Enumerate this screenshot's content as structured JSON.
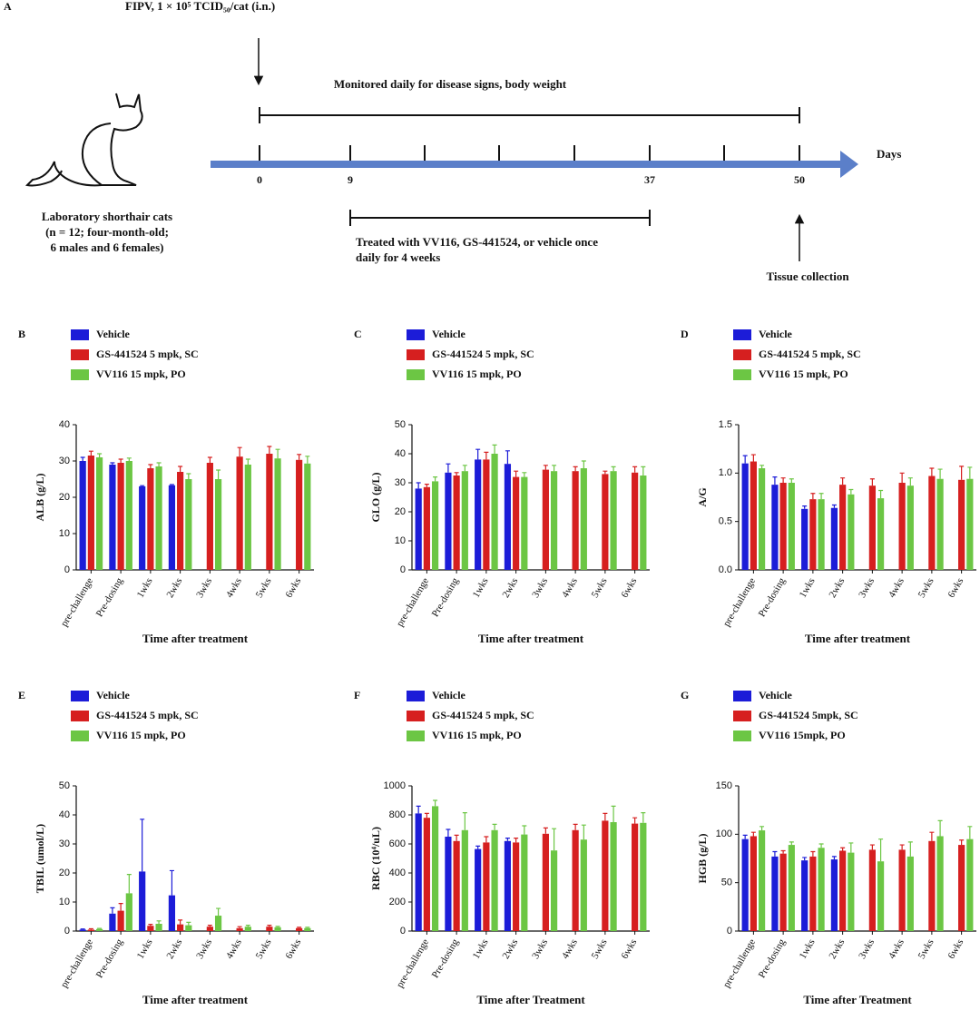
{
  "panel_a": {
    "label": "A",
    "challenge": "FIPV, 1 × 10⁵ TCID₅₀/cat (i.n.)",
    "monitor": "Monitored daily for disease signs, body weight",
    "days_label": "Days",
    "day_ticks": [
      "0",
      "9",
      "37",
      "50"
    ],
    "cat_lines": [
      "Laboratory shorthair cats",
      "(n = 12; four-month-old;",
      "6 males and 6 females)"
    ],
    "treatment_lines": [
      "Treated with VV116, GS-441524, or vehicle once",
      "daily for 4 weeks"
    ],
    "tissue": "Tissue collection"
  },
  "chart_data": [
    {
      "type": "bar",
      "panel": "B",
      "y_label": "ALB (g/L)",
      "x_label": "Time after treatment",
      "categories": [
        "pre-challenge",
        "Pre-dosing",
        "1wks",
        "2wks",
        "3wks",
        "4wks",
        "5wks",
        "6wks"
      ],
      "ylim": [
        0,
        40
      ],
      "yticks": [
        0,
        10,
        20,
        30,
        40
      ],
      "series": [
        {
          "name": "Vehicle",
          "color": "#1c1cd8",
          "values": [
            30,
            29,
            23,
            23.3,
            null,
            null,
            null,
            null
          ],
          "errors": [
            1,
            0.5,
            0.2,
            0.2,
            null,
            null,
            null,
            null
          ]
        },
        {
          "name": "GS-441524 5 mpk, SC",
          "color": "#d61f1f",
          "values": [
            31.5,
            29.5,
            28,
            27,
            29.5,
            31.2,
            32,
            30.3
          ],
          "errors": [
            1.2,
            1,
            1,
            1.5,
            1.5,
            2.5,
            2,
            1.5
          ]
        },
        {
          "name": "VV116 15 mpk, PO",
          "color": "#6cc644",
          "values": [
            31,
            30,
            28.5,
            25,
            25,
            29,
            30.7,
            29.3
          ],
          "errors": [
            1,
            0.8,
            1,
            1.5,
            2.5,
            1.5,
            2.5,
            2
          ]
        }
      ]
    },
    {
      "type": "bar",
      "panel": "C",
      "y_label": "GLO (g/L)",
      "x_label": "Time after treatment",
      "categories": [
        "pre-challenge",
        "Pre-dosing",
        "1wks",
        "2wks",
        "3wks",
        "4wks",
        "5wks",
        "6wks"
      ],
      "ylim": [
        0,
        50
      ],
      "yticks": [
        0,
        10,
        20,
        30,
        40,
        50
      ],
      "series": [
        {
          "name": "Vehicle",
          "color": "#1c1cd8",
          "values": [
            28,
            33.5,
            38,
            36.5,
            null,
            null,
            null,
            null
          ],
          "errors": [
            2,
            3,
            3.5,
            4.5,
            null,
            null,
            null,
            null
          ]
        },
        {
          "name": "GS-441524 5 mpk, SC",
          "color": "#d61f1f",
          "values": [
            28.5,
            32.5,
            38,
            32,
            34.5,
            34,
            33,
            33.5
          ],
          "errors": [
            1,
            1,
            2.5,
            2,
            1.5,
            1.5,
            1,
            2
          ]
        },
        {
          "name": "VV116 15 mpk, PO",
          "color": "#6cc644",
          "values": [
            30.5,
            34,
            40,
            32,
            34,
            35,
            34,
            32.5
          ],
          "errors": [
            1.5,
            2,
            3,
            1.5,
            2,
            2.5,
            1.5,
            3
          ]
        }
      ]
    },
    {
      "type": "bar",
      "panel": "D",
      "y_label": "A/G",
      "x_label": "Time after treatment",
      "categories": [
        "pre-challenge",
        "Pre-dosing",
        "1wks",
        "2wks",
        "3wks",
        "4wks",
        "5wks",
        "6wks"
      ],
      "ylim": [
        0,
        1.5
      ],
      "yticks": [
        {
          "value": 0,
          "label": "0.0"
        },
        0.5,
        {
          "value": 1,
          "label": "1.0"
        },
        1.5
      ],
      "series": [
        {
          "name": "Vehicle",
          "color": "#1c1cd8",
          "values": [
            1.1,
            0.88,
            0.63,
            0.64,
            null,
            null,
            null,
            null
          ],
          "errors": [
            0.08,
            0.08,
            0.03,
            0.03,
            null,
            null,
            null,
            null
          ]
        },
        {
          "name": "GS-441524 5 mpk, SC",
          "color": "#d61f1f",
          "values": [
            1.12,
            0.9,
            0.73,
            0.88,
            0.87,
            0.9,
            0.97,
            0.93
          ],
          "errors": [
            0.07,
            0.05,
            0.06,
            0.07,
            0.07,
            0.1,
            0.08,
            0.14
          ]
        },
        {
          "name": "VV116 15 mpk, PO",
          "color": "#6cc644",
          "values": [
            1.05,
            0.9,
            0.73,
            0.78,
            0.74,
            0.87,
            0.94,
            0.94
          ],
          "errors": [
            0.03,
            0.04,
            0.06,
            0.05,
            0.08,
            0.08,
            0.1,
            0.12
          ]
        }
      ]
    },
    {
      "type": "bar",
      "panel": "E",
      "y_label": "TBIL (umol/L)",
      "x_label": "Time after treatment",
      "categories": [
        "pre-challenge",
        "Pre-dosing",
        "1wks",
        "2wks",
        "3wks",
        "4wks",
        "5wks",
        "6wks"
      ],
      "ylim": [
        0,
        50
      ],
      "yticks": [
        0,
        10,
        20,
        30,
        40,
        50
      ],
      "series": [
        {
          "name": "Vehicle",
          "color": "#1c1cd8",
          "values": [
            0.5,
            6,
            20.5,
            12.3,
            null,
            null,
            null,
            null
          ],
          "errors": [
            0.2,
            2,
            18,
            8.5,
            null,
            null,
            null,
            null
          ]
        },
        {
          "name": "GS-441524 5 mpk, SC",
          "color": "#d61f1f",
          "values": [
            0.5,
            7,
            1.8,
            2.3,
            1.5,
            1,
            1.5,
            1
          ],
          "errors": [
            0.3,
            2.5,
            0.5,
            1.5,
            0.5,
            0.5,
            0.5,
            0.3
          ]
        },
        {
          "name": "VV116 15 mpk, PO",
          "color": "#6cc644",
          "values": [
            0.7,
            13,
            2.5,
            2,
            5.3,
            1.5,
            1.3,
            1
          ],
          "errors": [
            0.2,
            6.5,
            1,
            1,
            2.5,
            0.5,
            0.3,
            0.3
          ]
        }
      ]
    },
    {
      "type": "bar",
      "panel": "F",
      "y_label": "RBC (10⁴/uL)",
      "x_label": "Time after Treatment",
      "categories": [
        "pre-challenge",
        "Pre-dosing",
        "1wks",
        "2wks",
        "3wks",
        "4wks",
        "5wks",
        "6wks"
      ],
      "ylim": [
        0,
        1000
      ],
      "yticks": [
        0,
        200,
        400,
        600,
        800,
        1000
      ],
      "series": [
        {
          "name": "Vehicle",
          "color": "#1c1cd8",
          "values": [
            810,
            650,
            565,
            620,
            null,
            null,
            null,
            null
          ],
          "errors": [
            50,
            50,
            20,
            20,
            null,
            null,
            null,
            null
          ]
        },
        {
          "name": "GS-441524 5 mpk, SC",
          "color": "#d61f1f",
          "values": [
            780,
            620,
            610,
            610,
            670,
            695,
            760,
            740
          ],
          "errors": [
            30,
            40,
            40,
            30,
            40,
            40,
            50,
            40
          ]
        },
        {
          "name": "VV116 15 mpk, PO",
          "color": "#6cc644",
          "values": [
            860,
            695,
            695,
            665,
            555,
            630,
            750,
            745
          ],
          "errors": [
            40,
            120,
            40,
            60,
            150,
            100,
            110,
            70
          ]
        }
      ]
    },
    {
      "type": "bar",
      "panel": "G",
      "y_label": "HGB (g/L)",
      "x_label": "Time after Treatment",
      "categories": [
        "pre-challenge",
        "Pre-dosing",
        "1wks",
        "2wks",
        "3wks",
        "4wks",
        "5wks",
        "6wks"
      ],
      "ylim": [
        0,
        150
      ],
      "yticks": [
        0,
        50,
        100,
        150
      ],
      "series": [
        {
          "name": "Vehicle",
          "color": "#1c1cd8",
          "values": [
            95,
            77,
            73,
            74,
            null,
            null,
            null,
            null
          ],
          "errors": [
            4,
            5,
            3,
            3,
            null,
            null,
            null,
            null
          ]
        },
        {
          "name": "GS-441524 5mpk, SC",
          "color": "#d61f1f",
          "values": [
            98,
            80,
            77,
            83,
            84,
            84,
            93,
            89
          ],
          "errors": [
            4,
            3,
            5,
            3,
            5,
            5,
            9,
            5
          ]
        },
        {
          "name": "VV116 15mpk, PO",
          "color": "#6cc644",
          "values": [
            104,
            89,
            86,
            81,
            72,
            77,
            98,
            95
          ],
          "errors": [
            4,
            3,
            4,
            10,
            23,
            15,
            16,
            13
          ]
        }
      ]
    }
  ]
}
